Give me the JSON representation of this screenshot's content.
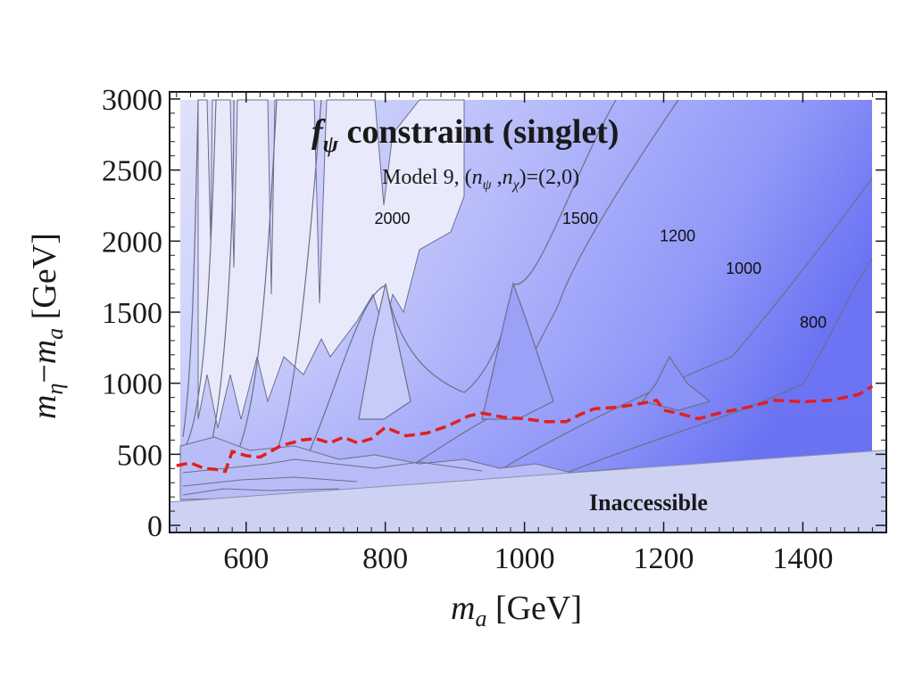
{
  "chart_data": {
    "type": "contour",
    "title": {
      "prefix": "f",
      "subscript": "ψ",
      "rest": " constraint (singlet)"
    },
    "subtitle": {
      "model": "Model 9, (",
      "n1": "n",
      "n1_sub": "ψ",
      "comma": " ,",
      "n2": "n",
      "n2_sub": "χ",
      "close": ")=(2,0)"
    },
    "xlabel": {
      "var": "m",
      "sub": "a",
      "unit": "  [GeV]"
    },
    "ylabel": {
      "var1": "m",
      "sub1": "η",
      "minus": "−",
      "var2": "m",
      "sub2": "a",
      "unit": " [GeV]"
    },
    "xlim": [
      490,
      1520
    ],
    "ylim": [
      -50,
      3050
    ],
    "xticks": [
      "600",
      "800",
      "1000",
      "1200",
      "1400"
    ],
    "xtick_values": [
      600,
      800,
      1000,
      1200,
      1400
    ],
    "yticks": [
      "0",
      "500",
      "1000",
      "1500",
      "2000",
      "2500",
      "3000"
    ],
    "ytick_values": [
      0,
      500,
      1000,
      1500,
      2000,
      2500,
      3000
    ],
    "contour_labels": [
      {
        "text": "2000",
        "x": 810,
        "y": 2120
      },
      {
        "text": "1500",
        "x": 1080,
        "y": 2120
      },
      {
        "text": "1200",
        "x": 1220,
        "y": 2000
      },
      {
        "text": "1000",
        "x": 1315,
        "y": 1770
      },
      {
        "text": "800",
        "x": 1415,
        "y": 1390
      }
    ],
    "exclusion_curve": {
      "color": "#e02020",
      "x": [
        500,
        520,
        540,
        555,
        570,
        580,
        600,
        620,
        650,
        680,
        700,
        720,
        740,
        760,
        780,
        800,
        830,
        860,
        890,
        920,
        940,
        970,
        1000,
        1030,
        1060,
        1080,
        1100,
        1130,
        1160,
        1190,
        1200,
        1220,
        1250,
        1280,
        1320,
        1360,
        1400,
        1440,
        1480,
        1500
      ],
      "y": [
        420,
        440,
        400,
        395,
        380,
        520,
        490,
        480,
        560,
        600,
        610,
        580,
        620,
        580,
        610,
        690,
        630,
        650,
        700,
        770,
        790,
        760,
        750,
        730,
        730,
        780,
        820,
        830,
        850,
        880,
        810,
        790,
        750,
        790,
        830,
        880,
        870,
        880,
        920,
        980
      ]
    },
    "inaccessible": {
      "label": "Inaccessible",
      "boundary": [
        {
          "x": 490,
          "y": 165
        },
        {
          "x": 1520,
          "y": 530
        }
      ]
    },
    "colors": {
      "lightest": "#e6e8fb",
      "light": "#cfd3f6",
      "mid": "#a9affb",
      "deep": "#7d86f7",
      "deepest": "#6a72f2",
      "inaccessible": "#cdd1f2",
      "frame": "#1a1a1a",
      "contour_line": "#6b6f8a"
    }
  }
}
